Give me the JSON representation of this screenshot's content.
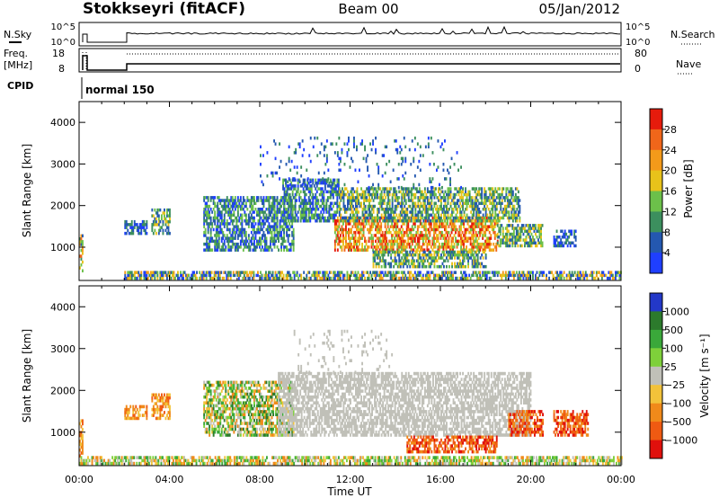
{
  "header": {
    "station": "Stokkseyri (fitACF)",
    "beam": "Beam 00",
    "date": "05/Jan/2012"
  },
  "summary": {
    "nsky_label": "N.Sky",
    "nsky_ticks": [
      "10^5",
      "10^0"
    ],
    "nsearch_label": "N.Search",
    "nsearch_ticks": [
      "10^5",
      "10^0"
    ],
    "freq_label": "Freq.",
    "freq_unit": "[MHz]",
    "freq_ticks": [
      "18",
      "8"
    ],
    "nave_label": "Nave",
    "nave_ticks": [
      "80",
      "0"
    ],
    "cpid_label": "CPID",
    "cpid_value": "normal 150"
  },
  "chart_data": [
    {
      "type": "heatmap",
      "name": "power",
      "ylabel": "Slant Range [km]",
      "ylim": [
        200,
        4500
      ],
      "yticks": [
        1000,
        2000,
        3000,
        4000
      ],
      "x_ticks": [
        "00:00",
        "04:00",
        "08:00",
        "12:00",
        "16:00",
        "20:00",
        "00:00"
      ],
      "xlim_hours": [
        0,
        24
      ],
      "colorbar": {
        "label": "Power [dB]",
        "ticks": [
          "4",
          "8",
          "12",
          "16",
          "20",
          "24",
          "28"
        ],
        "colors": [
          "#1f3fff",
          "#2458b0",
          "#3c8f5e",
          "#6cc04a",
          "#e8c21a",
          "#f39a1a",
          "#f0661a",
          "#e61b0c"
        ]
      },
      "regions": [
        {
          "t0": 0.0,
          "t1": 0.15,
          "r0": 400,
          "r1": 1300,
          "levels": [
            1,
            6
          ]
        },
        {
          "t0": 2.0,
          "t1": 3.0,
          "r0": 1300,
          "r1": 1650,
          "levels": [
            0,
            2
          ]
        },
        {
          "t0": 3.2,
          "t1": 4.0,
          "r0": 1300,
          "r1": 1900,
          "levels": [
            1,
            4
          ]
        },
        {
          "t0": 5.5,
          "t1": 9.5,
          "r0": 900,
          "r1": 2200,
          "levels": [
            0,
            3
          ]
        },
        {
          "t0": 9.0,
          "t1": 11.5,
          "r0": 1600,
          "r1": 2600,
          "levels": [
            0,
            3
          ]
        },
        {
          "t0": 11.3,
          "t1": 18.5,
          "r0": 900,
          "r1": 1700,
          "levels": [
            3,
            7
          ]
        },
        {
          "t0": 11.5,
          "t1": 19.5,
          "r0": 1600,
          "r1": 2400,
          "levels": [
            1,
            4
          ]
        },
        {
          "t0": 13.0,
          "t1": 18.0,
          "r0": 500,
          "r1": 900,
          "levels": [
            1,
            4
          ]
        },
        {
          "t0": 18.5,
          "t1": 20.5,
          "r0": 1000,
          "r1": 1500,
          "levels": [
            1,
            4
          ]
        },
        {
          "t0": 21.0,
          "t1": 22.0,
          "r0": 1000,
          "r1": 1400,
          "levels": [
            0,
            2
          ]
        },
        {
          "t0": 2.0,
          "t1": 24.0,
          "r0": 220,
          "r1": 420,
          "levels": [
            0,
            5
          ]
        },
        {
          "t0": 8.0,
          "t1": 17.0,
          "r0": 2400,
          "r1": 3600,
          "levels": [
            0,
            2
          ],
          "sparse": true
        }
      ]
    },
    {
      "type": "heatmap",
      "name": "velocity",
      "ylabel": "Slant Range [km]",
      "ylim": [
        200,
        4500
      ],
      "yticks": [
        1000,
        2000,
        3000,
        4000
      ],
      "x_ticks": [
        "00:00",
        "04:00",
        "08:00",
        "12:00",
        "16:00",
        "20:00",
        "00:00"
      ],
      "xlim_hours": [
        0,
        24
      ],
      "xlabel": "Time UT",
      "colorbar": {
        "label": "Velocity [m s⁻¹]",
        "ticks": [
          "1000",
          "500",
          "100",
          "25",
          "−25",
          "−100",
          "−500",
          "−1000"
        ],
        "colors": [
          "#2338c8",
          "#2c7a2c",
          "#3aa83a",
          "#7ed03a",
          "#c0c0b8",
          "#f2c23a",
          "#f08a1a",
          "#ef5a12",
          "#e0100c"
        ]
      },
      "regions": [
        {
          "t0": 0.0,
          "t1": 0.15,
          "r0": 400,
          "r1": 1300,
          "levels": [
            5,
            7
          ]
        },
        {
          "t0": 2.0,
          "t1": 3.0,
          "r0": 1300,
          "r1": 1650,
          "levels": [
            5,
            7
          ]
        },
        {
          "t0": 3.2,
          "t1": 4.0,
          "r0": 1300,
          "r1": 1900,
          "levels": [
            5,
            7
          ]
        },
        {
          "t0": 5.5,
          "t1": 9.5,
          "r0": 900,
          "r1": 2200,
          "levels": [
            1,
            6
          ]
        },
        {
          "t0": 8.8,
          "t1": 20.0,
          "r0": 900,
          "r1": 2400,
          "levels": [
            4,
            4
          ]
        },
        {
          "t0": 9.5,
          "t1": 14.0,
          "r0": 2400,
          "r1": 3400,
          "levels": [
            4,
            4
          ],
          "sparse": true
        },
        {
          "t0": 14.5,
          "t1": 18.5,
          "r0": 500,
          "r1": 900,
          "levels": [
            6,
            8
          ]
        },
        {
          "t0": 19.0,
          "t1": 20.5,
          "r0": 900,
          "r1": 1500,
          "levels": [
            6,
            8
          ]
        },
        {
          "t0": 21.0,
          "t1": 22.5,
          "r0": 900,
          "r1": 1500,
          "levels": [
            6,
            8
          ]
        },
        {
          "t0": 0.0,
          "t1": 24.0,
          "r0": 220,
          "r1": 420,
          "levels": [
            2,
            6
          ]
        }
      ]
    }
  ]
}
